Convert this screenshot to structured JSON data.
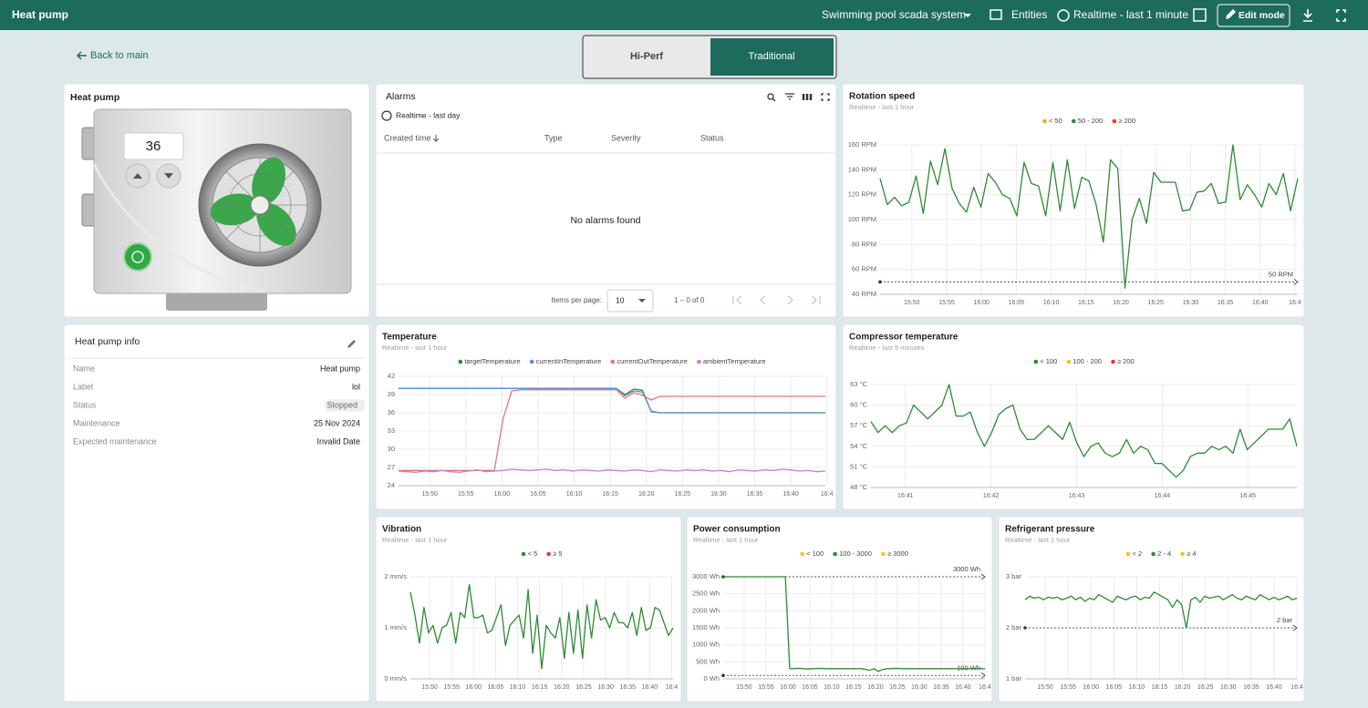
{
  "header": {
    "title": "Heat pump",
    "dashboard": "Swimming pool scada system",
    "entities": "Entities",
    "timewindow": "Realtime - last 1 minute",
    "edit": "Edit mode"
  },
  "nav": {
    "back": "Back to main",
    "tabs": [
      "Hi-Perf",
      "Traditional"
    ]
  },
  "heat_pump": {
    "title": "Heat pump",
    "display": "36"
  },
  "alarms": {
    "title": "Alarms",
    "timewindow": "Realtime - last day",
    "columns": [
      "Created time",
      "Type",
      "Severity",
      "Status"
    ],
    "empty": "No alarms found",
    "items_per_page": "Items per page:",
    "page_size": "10",
    "range": "1 – 0 of 0"
  },
  "info": {
    "title": "Heat pump info",
    "rows": [
      [
        "Name",
        "Heat pump"
      ],
      [
        "Label",
        "lol"
      ],
      [
        "Status",
        "Stopped"
      ],
      [
        "Maintenance",
        "25 Nov 2024"
      ],
      [
        "Expected maintenance",
        "Invalid Date"
      ]
    ]
  },
  "chart_data": [
    {
      "type": "line",
      "title": "Rotation speed",
      "subtitle": "Realtime - last 1 hour",
      "grid": true,
      "legend": [
        {
          "name": "< 50",
          "color": "#f5a623"
        },
        {
          "name": "50 - 200",
          "color": "#2e8b34"
        },
        {
          "name": "≥ 200",
          "color": "#e53935"
        }
      ],
      "series": [
        {
          "color": "#2e8b34",
          "values": [
            133,
            112,
            118,
            111,
            114,
            135,
            105,
            147,
            128,
            157,
            125,
            113,
            106,
            126,
            110,
            137,
            130,
            120,
            117,
            103,
            146,
            129,
            127,
            103,
            146,
            107,
            148,
            109,
            134,
            131,
            112,
            82,
            148,
            141,
            45,
            100,
            117,
            97,
            138,
            130,
            130,
            130,
            107,
            108,
            122,
            123,
            129,
            113,
            114,
            160,
            116,
            128,
            120,
            110,
            129,
            120,
            137,
            107,
            133
          ]
        }
      ],
      "ylim": [
        40,
        160
      ],
      "yticks": [
        {
          "value": 40,
          "label": "40 RPM"
        },
        {
          "value": 60,
          "label": "60 RPM"
        },
        {
          "value": 80,
          "label": "80 RPM"
        },
        {
          "value": 100,
          "label": "100 RPM"
        },
        {
          "value": 120,
          "label": "120 RPM"
        },
        {
          "value": 140,
          "label": "140 RPM"
        },
        {
          "value": 160,
          "label": "160 RPM"
        }
      ],
      "xticks": [
        "15:50",
        "15:55",
        "16:00",
        "16:05",
        "16:10",
        "16:15",
        "16:20",
        "16:25",
        "16:30",
        "16:35",
        "16:40",
        "16:4"
      ],
      "thresholds": [
        {
          "value": 50,
          "label": "50 RPM"
        }
      ]
    },
    {
      "type": "line",
      "title": "Temperature",
      "subtitle": "Realtime - last 1 hour",
      "grid": true,
      "series": [
        {
          "name": "targetTemperature",
          "color": "#2e8b34",
          "values": [
            40,
            40,
            40,
            40,
            40,
            40,
            40,
            40,
            40,
            40,
            40,
            40,
            40,
            40,
            40,
            40,
            40,
            40,
            40,
            40,
            40,
            40,
            40,
            40,
            40,
            40,
            39.0,
            39.9,
            39.7,
            36.2,
            36,
            36,
            36,
            36,
            36,
            36,
            36,
            36,
            36,
            36,
            36,
            36,
            36,
            36,
            36,
            36,
            36,
            36,
            36,
            36
          ]
        },
        {
          "name": "currentInTemperature",
          "color": "#5b8fd6",
          "values": [
            40,
            40,
            40,
            40,
            40,
            40,
            40,
            40,
            40,
            40,
            40,
            40,
            40,
            40,
            40,
            40,
            40,
            40,
            40,
            40,
            40,
            40,
            40,
            40,
            40,
            40,
            38.8,
            39.6,
            39.4,
            36.3,
            36,
            36,
            36,
            36,
            36,
            36,
            36,
            36,
            36,
            36,
            36,
            36,
            36,
            36,
            36,
            36,
            36,
            36,
            36,
            36
          ]
        },
        {
          "name": "currentOutTemperature",
          "color": "#e8776c",
          "values": [
            26.5,
            26.5,
            26.5,
            26.5,
            26.5,
            26.5,
            26.5,
            26.5,
            26.5,
            26.5,
            26.5,
            26.5,
            35,
            39.6,
            39.8,
            39.8,
            39.8,
            39.8,
            39.8,
            39.8,
            39.8,
            39.8,
            39.8,
            39.8,
            39.8,
            39.8,
            38.4,
            39.3,
            38.9,
            38.1,
            38.7,
            38.7,
            38.7,
            38.7,
            38.7,
            38.7,
            38.7,
            38.7,
            38.7,
            38.7,
            38.7,
            38.7,
            38.7,
            38.7,
            38.7,
            38.7,
            38.7,
            38.7,
            38.7,
            38.7
          ]
        },
        {
          "name": "ambientTemperature",
          "color": "#c77dde",
          "values": [
            26.4,
            26.3,
            26.2,
            26.4,
            26.3,
            26.5,
            26.3,
            26.2,
            26.4,
            26.6,
            26.3,
            26.4,
            26.5,
            26.7,
            26.6,
            26.5,
            26.6,
            26.7,
            26.5,
            26.6,
            26.4,
            26.6,
            26.5,
            26.4,
            26.6,
            26.5,
            26.4,
            26.6,
            26.5,
            26.3,
            26.6,
            26.5,
            26.4,
            26.6,
            26.5,
            26.6,
            26.4,
            26.5,
            26.3,
            26.6,
            26.5,
            26.4,
            26.6,
            26.5,
            26.7,
            26.6,
            26.4,
            26.5,
            26.3,
            26.4
          ]
        }
      ],
      "ylim": [
        24,
        42
      ],
      "yticks": [
        24,
        27,
        30,
        33,
        36,
        39,
        42
      ],
      "xticks": [
        "15:50",
        "15:55",
        "16:00",
        "16:05",
        "16:10",
        "16:15",
        "16:20",
        "16:25",
        "16:30",
        "16:35",
        "16:40",
        "16:4"
      ]
    },
    {
      "type": "line",
      "title": "Compressor temperature",
      "subtitle": "Realtime - last 5 minutes",
      "grid": true,
      "legend": [
        {
          "name": "< 100",
          "color": "#2e8b34"
        },
        {
          "name": "100 - 200",
          "color": "#f5c518"
        },
        {
          "name": "≥ 200",
          "color": "#e53935"
        }
      ],
      "series": [
        {
          "color": "#2e8b34",
          "values": [
            57.6,
            56,
            57,
            56,
            57,
            57.4,
            60,
            59,
            58,
            59,
            60,
            63,
            58.4,
            58.4,
            59,
            56,
            54,
            56,
            58.6,
            59.5,
            60,
            56.5,
            55,
            55,
            56,
            57,
            56,
            55,
            57.5,
            54.5,
            52.5,
            54,
            54.5,
            53,
            52.5,
            53,
            55,
            53,
            54,
            53.5,
            51.5,
            51.5,
            50.5,
            49.5,
            50.5,
            52.5,
            53,
            53,
            54,
            53.5,
            54,
            53,
            56.5,
            53.5,
            54.5,
            55.5,
            56.5,
            56.5,
            56.5,
            58,
            54
          ]
        }
      ],
      "ylim": [
        48,
        63
      ],
      "yticks": [
        {
          "value": 48,
          "label": "48 °C"
        },
        {
          "value": 51,
          "label": "51 °C"
        },
        {
          "value": 54,
          "label": "54 °C"
        },
        {
          "value": 57,
          "label": "57 °C"
        },
        {
          "value": 60,
          "label": "60 °C"
        },
        {
          "value": 63,
          "label": "63 °C"
        }
      ],
      "xticks": [
        "16:41",
        "16:42",
        "16:43",
        "16:44",
        "16:45"
      ]
    },
    {
      "type": "line",
      "title": "Vibration",
      "subtitle": "Realtime - last 1 hour",
      "grid": true,
      "legend": [
        {
          "name": "< 5",
          "color": "#2e8b34"
        },
        {
          "name": "≥ 5",
          "color": "#e53935"
        }
      ],
      "series": [
        {
          "color": "#2e8b34",
          "values": [
            1.7,
            1.25,
            0.7,
            1.4,
            0.9,
            1.05,
            0.7,
            1,
            1.05,
            1.3,
            0.7,
            1.3,
            1.2,
            1.85,
            1.2,
            1.2,
            1.25,
            0.9,
            0.95,
            1.2,
            1.45,
            0.65,
            1.05,
            1.15,
            1.25,
            0.8,
            1.75,
            0.5,
            1.25,
            0.2,
            1.05,
            0.9,
            0.8,
            1.2,
            0.4,
            1.3,
            0.5,
            1.35,
            0.4,
            1.45,
            0.8,
            1.55,
            1.15,
            1.2,
            1.0,
            1.3,
            1.1,
            1.1,
            1.0,
            1.3,
            0.85,
            1.4,
            0.95,
            1.0,
            1.4,
            1.35,
            1.1,
            0.85,
            1.0
          ]
        }
      ],
      "ylim": [
        0,
        2
      ],
      "yticks": [
        {
          "value": 0,
          "label": "0 mm/s"
        },
        {
          "value": 1,
          "label": "1 mm/s"
        },
        {
          "value": 2,
          "label": "2 mm/s"
        }
      ],
      "xticks": [
        "15:50",
        "15:55",
        "16:00",
        "16:05",
        "16:10",
        "16:15",
        "16:20",
        "16:25",
        "16:30",
        "16:35",
        "16:40",
        "16:4"
      ]
    },
    {
      "type": "line",
      "title": "Power consumption",
      "subtitle": "Realtime - last 1 hour",
      "grid": true,
      "legend": [
        {
          "name": "< 100",
          "color": "#f5c518"
        },
        {
          "name": "100 - 3000",
          "color": "#2e8b34"
        },
        {
          "name": "≥ 3000",
          "color": "#f5c518"
        }
      ],
      "series": [
        {
          "color": "#2e8b34",
          "values": [
            3000,
            3000,
            3000,
            3000,
            3000,
            3000,
            3000,
            3000,
            3000,
            3000,
            3000,
            3000,
            3000,
            3000,
            3000,
            300,
            300,
            310,
            300,
            290,
            300,
            300,
            310,
            300,
            300,
            300,
            300,
            300,
            300,
            300,
            300,
            300,
            280,
            250,
            300,
            220,
            280,
            300,
            300,
            310,
            300,
            300,
            300,
            300,
            300,
            300,
            300,
            300,
            300,
            300,
            300,
            300,
            300,
            300,
            300,
            300,
            300,
            300,
            300,
            300
          ]
        }
      ],
      "ylim": [
        0,
        3000
      ],
      "yticks": [
        {
          "value": 0,
          "label": "0 Wh"
        },
        {
          "value": 500,
          "label": "500 Wh"
        },
        {
          "value": 1000,
          "label": "1000 Wh"
        },
        {
          "value": 1500,
          "label": "1500 Wh"
        },
        {
          "value": 2000,
          "label": "2000 Wh"
        },
        {
          "value": 2500,
          "label": "2500 Wh"
        },
        {
          "value": 3000,
          "label": "3000 Wh"
        }
      ],
      "xticks": [
        "15:50",
        "15:55",
        "16:00",
        "16:05",
        "16:10",
        "16:15",
        "16:20",
        "16:25",
        "16:30",
        "16:35",
        "16:40",
        "16:4"
      ],
      "thresholds": [
        {
          "value": 3000,
          "label": "3000 Wh"
        },
        {
          "value": 100,
          "label": "100 Wh"
        }
      ]
    },
    {
      "type": "line",
      "title": "Refrigerant pressure",
      "subtitle": "Realtime - last 1 hour",
      "grid": true,
      "legend": [
        {
          "name": "< 2",
          "color": "#f5c518"
        },
        {
          "name": "2 - 4",
          "color": "#2e8b34"
        },
        {
          "name": "≥ 4",
          "color": "#f5c518"
        }
      ],
      "series": [
        {
          "color": "#2e8b34",
          "values": [
            2.55,
            2.62,
            2.58,
            2.6,
            2.55,
            2.6,
            2.58,
            2.6,
            2.55,
            2.58,
            2.62,
            2.55,
            2.6,
            2.52,
            2.58,
            2.55,
            2.65,
            2.6,
            2.55,
            2.5,
            2.62,
            2.58,
            2.55,
            2.6,
            2.62,
            2.55,
            2.6,
            2.58,
            2.7,
            2.65,
            2.6,
            2.55,
            2.4,
            2.55,
            2.45,
            2.0,
            2.55,
            2.6,
            2.5,
            2.62,
            2.58,
            2.6,
            2.62,
            2.55,
            2.6,
            2.65,
            2.58,
            2.55,
            2.62,
            2.58,
            2.55,
            2.65,
            2.6,
            2.55,
            2.6,
            2.55,
            2.58,
            2.62,
            2.55,
            2.58
          ]
        }
      ],
      "ylim": [
        1,
        3
      ],
      "yticks": [
        {
          "value": 1,
          "label": "1 bar"
        },
        {
          "value": 2,
          "label": "2 bar"
        },
        {
          "value": 3,
          "label": "3 bar"
        }
      ],
      "xticks": [
        "15:50",
        "15:55",
        "16:00",
        "16:05",
        "16:10",
        "16:15",
        "16:20",
        "16:25",
        "16:30",
        "16:35",
        "16:40",
        "16:4"
      ],
      "thresholds": [
        {
          "value": 2,
          "label": "2 bar"
        }
      ]
    }
  ]
}
